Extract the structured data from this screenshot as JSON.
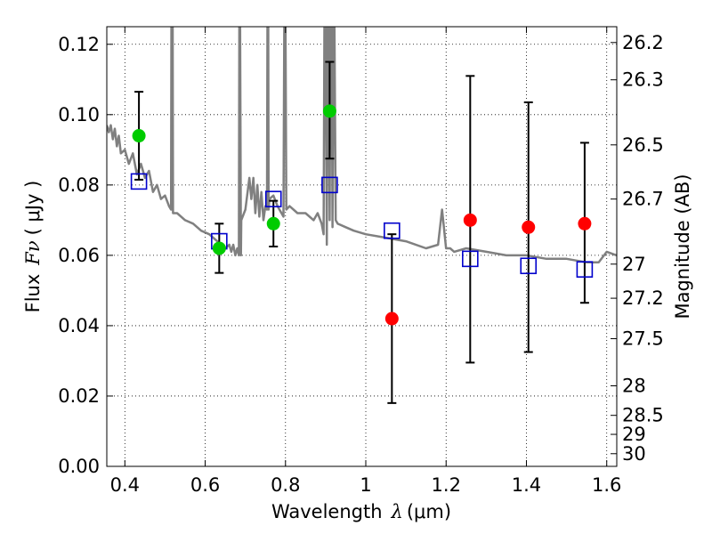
{
  "chart_data": {
    "type": "scatter",
    "xlabel": "Wavelength",
    "xlabel_symbol": "λ",
    "xlabel_unit": "(μm)",
    "ylabel": "Flux",
    "ylabel_symbol": "Fν",
    "ylabel_unit": "( μJy )",
    "y2label": "Magnitude (AB)",
    "xlim": [
      0.355,
      1.625
    ],
    "ylim": [
      0.0,
      0.125
    ],
    "grid": true,
    "x_ticks": [
      0.4,
      0.6,
      0.8,
      1.0,
      1.2,
      1.4,
      1.6
    ],
    "x_tick_labels": [
      "0.4",
      "0.6",
      "0.8",
      "1",
      "1.2",
      "1.4",
      "1.6"
    ],
    "y_ticks": [
      0.0,
      0.02,
      0.04,
      0.06,
      0.08,
      0.1,
      0.12
    ],
    "y_tick_labels": [
      "0.00",
      "0.02",
      "0.04",
      "0.06",
      "0.08",
      "0.10",
      "0.12"
    ],
    "y2_ticks": [
      {
        "label": "26.2",
        "flux": 0.1205
      },
      {
        "label": "26.3",
        "flux": 0.1099
      },
      {
        "label": "26.5",
        "flux": 0.0914
      },
      {
        "label": "26.7",
        "flux": 0.076
      },
      {
        "label": "27",
        "flux": 0.0575
      },
      {
        "label": "27.2",
        "flux": 0.0478
      },
      {
        "label": "27.5",
        "flux": 0.0363
      },
      {
        "label": "28",
        "flux": 0.0229
      },
      {
        "label": "28.5",
        "flux": 0.0145
      },
      {
        "label": "29",
        "flux": 0.0091
      },
      {
        "label": "30",
        "flux": 0.0036
      }
    ],
    "series": [
      {
        "kind": "model_spectrum",
        "color": "#808080",
        "x": [
          0.355,
          0.36,
          0.365,
          0.37,
          0.375,
          0.38,
          0.385,
          0.39,
          0.4,
          0.41,
          0.42,
          0.43,
          0.44,
          0.45,
          0.46,
          0.47,
          0.48,
          0.49,
          0.5,
          0.51,
          0.515,
          0.516,
          0.519,
          0.52,
          0.53,
          0.55,
          0.57,
          0.59,
          0.61,
          0.63,
          0.65,
          0.66,
          0.665,
          0.67,
          0.675,
          0.68,
          0.684,
          0.685,
          0.687,
          0.689,
          0.69,
          0.7,
          0.71,
          0.715,
          0.72,
          0.725,
          0.73,
          0.735,
          0.74,
          0.745,
          0.75,
          0.754,
          0.755,
          0.757,
          0.758,
          0.76,
          0.77,
          0.78,
          0.79,
          0.795,
          0.797,
          0.8,
          0.802,
          0.81,
          0.83,
          0.85,
          0.87,
          0.88,
          0.89,
          0.895,
          0.897,
          0.9,
          0.903,
          0.905,
          0.907,
          0.91,
          0.912,
          0.915,
          0.917,
          0.92,
          0.922,
          0.925,
          0.93,
          0.95,
          0.97,
          1.0,
          1.05,
          1.1,
          1.15,
          1.18,
          1.19,
          1.2,
          1.21,
          1.22,
          1.25,
          1.3,
          1.35,
          1.4,
          1.45,
          1.5,
          1.55,
          1.58,
          1.6,
          1.625
        ],
        "y": [
          0.097,
          0.095,
          0.097,
          0.093,
          0.096,
          0.091,
          0.094,
          0.089,
          0.09,
          0.086,
          0.089,
          0.083,
          0.086,
          0.082,
          0.084,
          0.078,
          0.08,
          0.076,
          0.077,
          0.074,
          0.073,
          0.125,
          0.125,
          0.072,
          0.072,
          0.07,
          0.069,
          0.067,
          0.066,
          0.064,
          0.062,
          0.063,
          0.061,
          0.063,
          0.06,
          0.062,
          0.06,
          0.125,
          0.125,
          0.06,
          0.07,
          0.073,
          0.082,
          0.076,
          0.082,
          0.072,
          0.08,
          0.071,
          0.078,
          0.07,
          0.074,
          0.073,
          0.125,
          0.125,
          0.073,
          0.076,
          0.077,
          0.074,
          0.072,
          0.071,
          0.125,
          0.125,
          0.073,
          0.074,
          0.072,
          0.072,
          0.07,
          0.072,
          0.069,
          0.066,
          0.125,
          0.125,
          0.063,
          0.125,
          0.125,
          0.07,
          0.125,
          0.125,
          0.068,
          0.125,
          0.125,
          0.07,
          0.069,
          0.068,
          0.067,
          0.066,
          0.065,
          0.064,
          0.062,
          0.063,
          0.073,
          0.062,
          0.062,
          0.061,
          0.062,
          0.061,
          0.06,
          0.06,
          0.059,
          0.059,
          0.058,
          0.058,
          0.061,
          0.06
        ]
      },
      {
        "kind": "model_photometry",
        "marker": "open-square",
        "color": "#0000cc",
        "x": [
          0.435,
          0.635,
          0.77,
          0.91,
          1.065,
          1.26,
          1.405,
          1.545
        ],
        "y": [
          0.081,
          0.064,
          0.076,
          0.08,
          0.067,
          0.059,
          0.057,
          0.056
        ]
      },
      {
        "kind": "observed_photometry",
        "marker": "filled-circle",
        "x": [
          0.435,
          0.635,
          0.77,
          0.91,
          1.065,
          1.26,
          1.405,
          1.545
        ],
        "y": [
          0.094,
          0.062,
          0.069,
          0.101,
          0.042,
          0.07,
          0.068,
          0.069
        ],
        "err_lo": [
          0.0815,
          0.055,
          0.0625,
          0.0875,
          0.018,
          0.0295,
          0.0325,
          0.0465
        ],
        "err_hi": [
          0.1065,
          0.069,
          0.0755,
          0.115,
          0.066,
          0.111,
          0.1035,
          0.092
        ],
        "colors": [
          "#00cc00",
          "#00cc00",
          "#00cc00",
          "#00cc00",
          "#ff0000",
          "#ff0000",
          "#ff0000",
          "#ff0000"
        ]
      }
    ]
  }
}
